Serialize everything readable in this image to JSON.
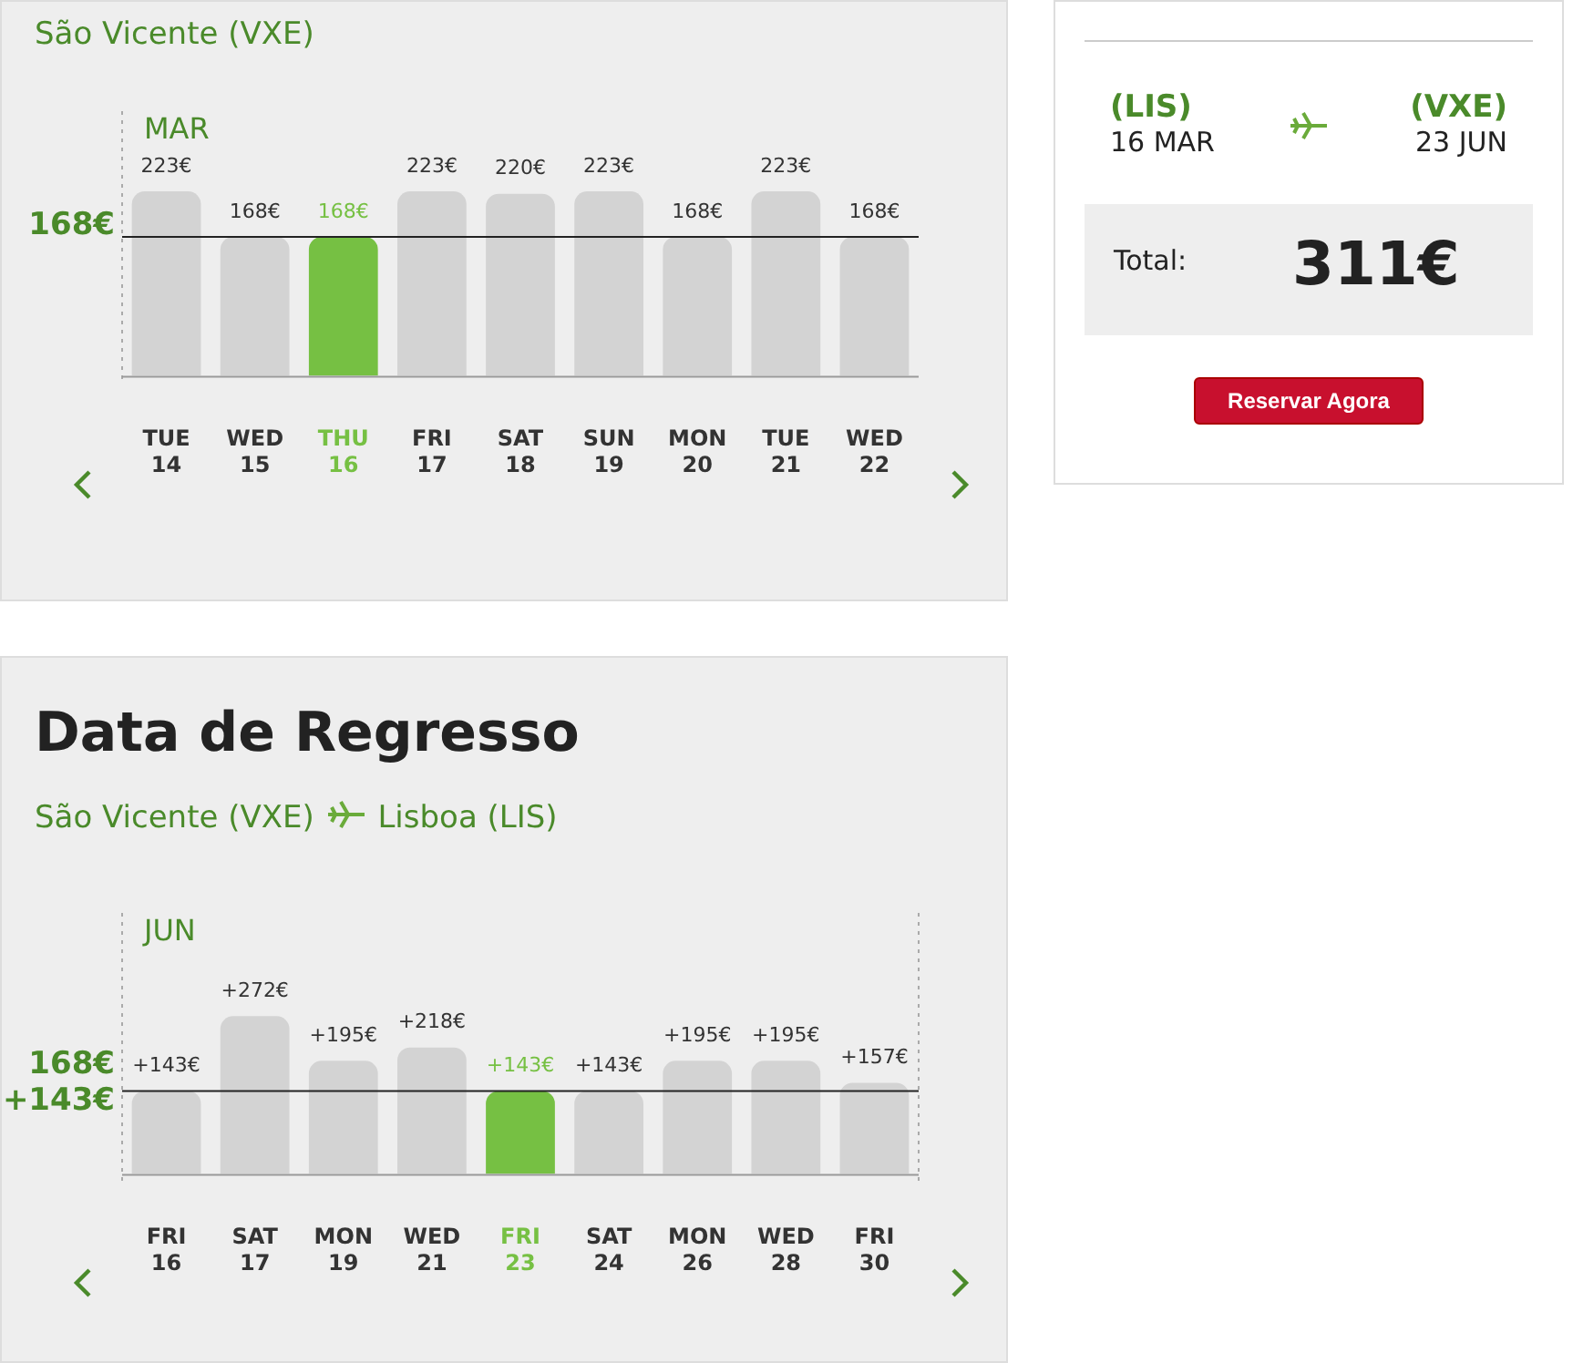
{
  "chart_data": [
    {
      "type": "bar",
      "title": "São Vicente (VXE)",
      "categories": [
        "TUE\n14",
        "WED\n15",
        "THU\n16",
        "FRI\n17",
        "SAT\n18",
        "SUN\n19",
        "MON\n20",
        "TUE\n21",
        "WED\n22"
      ],
      "values": [
        223,
        168,
        168,
        223,
        220,
        223,
        168,
        223,
        168
      ],
      "value_labels": [
        "223€",
        "168€",
        "168€",
        "223€",
        "220€",
        "223€",
        "168€",
        "223€",
        "168€"
      ],
      "colors": [
        "#d3d3d3",
        "#d3d3d3",
        "#76c043",
        "#d3d3d3",
        "#d3d3d3",
        "#d3d3d3",
        "#d3d3d3",
        "#d3d3d3",
        "#d3d3d3"
      ],
      "ylim": [
        0,
        320
      ],
      "ref_lines": [
        {
          "axis": "y",
          "value": 168,
          "label": "168€"
        }
      ],
      "annotations": [
        "MAR"
      ]
    },
    {
      "type": "bar",
      "title": "Data de Regresso",
      "subtitle": "São Vicente (VXE)",
      "categories": [
        "FRI\n16",
        "SAT\n17",
        "MON\n19",
        "WED\n21",
        "FRI\n23",
        "SAT\n24",
        "MON\n26",
        "WED\n28",
        "FRI\n30"
      ],
      "values": [
        143,
        272,
        195,
        218,
        143,
        143,
        195,
        195,
        157
      ],
      "value_labels": [
        "+143€",
        "+272€",
        "+195€",
        "+218€",
        "+143€",
        "+143€",
        "+195€",
        "+195€",
        "+157€"
      ],
      "colors": [
        "#d3d3d3",
        "#d3d3d3",
        "#d3d3d3",
        "#d3d3d3",
        "#76c043",
        "#d3d3d3",
        "#d3d3d3",
        "#d3d3d3",
        "#d3d3d3"
      ],
      "ylim": [
        0,
        450
      ],
      "ref_lines": [
        {
          "axis": "y",
          "value": 143,
          "label": "168€\n+143€"
        }
      ],
      "annotations": [
        "Lisboa (LIS)",
        "JUN"
      ]
    },
    {
      "type": "other",
      "annotations": [
        "(LIS)",
        "16 MAR",
        "(VXE)",
        "23 JUN",
        "Total:",
        "311€",
        "Reservar Agora"
      ]
    }
  ]
}
